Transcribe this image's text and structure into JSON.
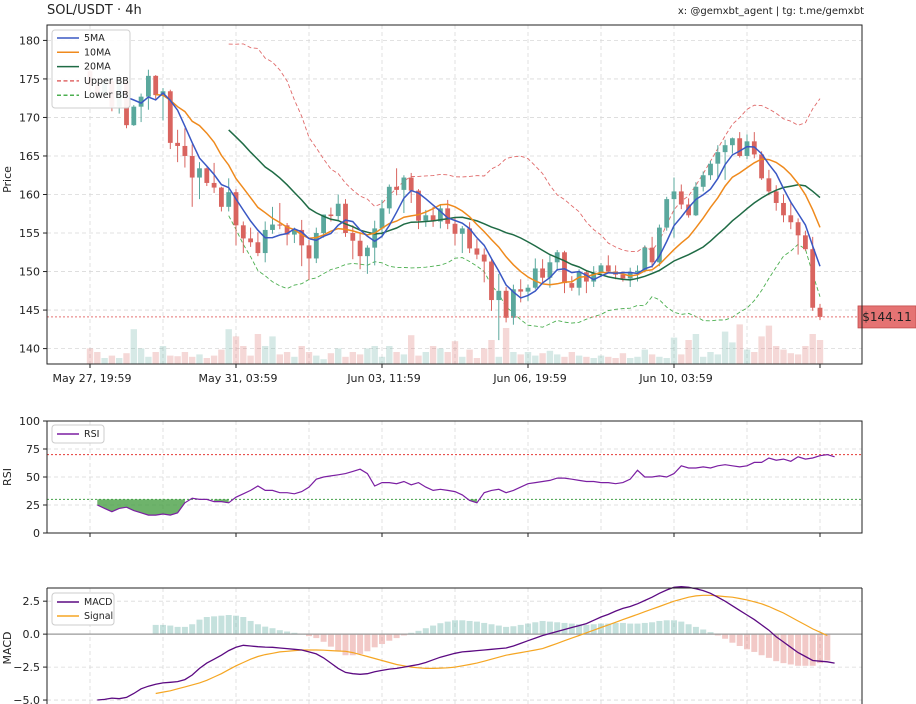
{
  "header": {
    "title": "SOL/USDT · 4h",
    "credit": "x: @gemxbt_agent | tg: t.me/gemxbt"
  },
  "colors": {
    "up": "#5aa89d",
    "down": "#d9645f",
    "ma5": "#3a58c4",
    "ma10": "#ef8a1d",
    "ma20": "#1f6b45",
    "bb_upper": "#e06a6a",
    "bb_lower": "#4caf50",
    "rsi": "#7b1fa2",
    "macd": "#5c0a82",
    "signal": "#f5a623",
    "price_tag": "#e57373"
  },
  "chart_data": [
    {
      "type": "candlestick",
      "id": "price",
      "ylabel": "Price",
      "ylim": [
        138,
        182
      ],
      "yticks": [
        140,
        145,
        150,
        155,
        160,
        165,
        170,
        175,
        180
      ],
      "xtick_labels": [
        "May 27, 19:59",
        "May 31, 03:59",
        "Jun 03, 11:59",
        "Jun 06, 19:59",
        "Jun 10, 03:59"
      ],
      "xtick_index": [
        0,
        20,
        40,
        60,
        80
      ],
      "legend": [
        "5MA",
        "10MA",
        "20MA",
        "Upper BB",
        "Lower BB"
      ],
      "current_price": 144.11,
      "current_price_label": "$144.11",
      "candles": [
        [
          176.0,
          176.6,
          173.4,
          174.2
        ],
        [
          174.2,
          174.6,
          172.9,
          173.2
        ],
        [
          173.2,
          175.2,
          172.6,
          174.7
        ],
        [
          174.7,
          175.0,
          170.8,
          171.4
        ],
        [
          171.4,
          175.6,
          170.5,
          174.8
        ],
        [
          174.6,
          175.1,
          168.6,
          169.0
        ],
        [
          169.0,
          171.6,
          168.9,
          171.4
        ],
        [
          171.4,
          173.1,
          169.4,
          172.7
        ],
        [
          172.7,
          176.2,
          171.0,
          175.4
        ],
        [
          175.4,
          175.5,
          172.3,
          172.9
        ],
        [
          173.0,
          173.8,
          169.6,
          173.4
        ],
        [
          173.4,
          173.6,
          165.9,
          166.7
        ],
        [
          166.7,
          168.4,
          164.2,
          166.3
        ],
        [
          166.3,
          168.6,
          163.5,
          165.0
        ],
        [
          165.0,
          166.5,
          158.4,
          162.2
        ],
        [
          162.2,
          164.2,
          159.4,
          163.4
        ],
        [
          163.4,
          163.5,
          161.1,
          161.5
        ],
        [
          161.5,
          164.1,
          160.2,
          160.9
        ],
        [
          160.9,
          161.0,
          157.8,
          158.4
        ],
        [
          158.4,
          162.1,
          157.8,
          160.3
        ],
        [
          160.3,
          160.7,
          153.4,
          156.0
        ],
        [
          156.0,
          156.5,
          152.4,
          154.3
        ],
        [
          154.3,
          155.7,
          153.2,
          153.8
        ],
        [
          153.8,
          155.1,
          152.0,
          152.4
        ],
        [
          152.4,
          156.5,
          151.2,
          155.4
        ],
        [
          155.4,
          158.4,
          154.9,
          156.1
        ],
        [
          156.1,
          158.9,
          155.5,
          156.0
        ],
        [
          156.0,
          156.3,
          153.4,
          154.8
        ],
        [
          154.8,
          155.7,
          153.7,
          155.4
        ],
        [
          155.4,
          156.7,
          150.7,
          153.4
        ],
        [
          153.4,
          154.1,
          148.9,
          151.7
        ],
        [
          151.7,
          155.7,
          151.1,
          155.0
        ],
        [
          155.0,
          157.4,
          154.4,
          157.4
        ],
        [
          157.4,
          158.3,
          156.5,
          157.2
        ],
        [
          157.2,
          160.0,
          156.7,
          158.8
        ],
        [
          158.8,
          159.4,
          154.5,
          155.0
        ],
        [
          155.0,
          156.0,
          151.6,
          154.0
        ],
        [
          154.0,
          155.1,
          150.3,
          152.0
        ],
        [
          152.0,
          153.4,
          149.7,
          153.1
        ],
        [
          153.1,
          156.6,
          150.8,
          155.6
        ],
        [
          155.6,
          159.3,
          154.4,
          158.2
        ],
        [
          158.2,
          161.3,
          157.5,
          161.0
        ],
        [
          161.0,
          163.4,
          159.9,
          160.6
        ],
        [
          160.6,
          162.5,
          157.6,
          162.2
        ],
        [
          162.2,
          162.8,
          158.9,
          160.5
        ],
        [
          160.5,
          160.7,
          155.5,
          156.6
        ],
        [
          156.6,
          158.0,
          155.8,
          157.3
        ],
        [
          157.3,
          158.4,
          155.8,
          156.5
        ],
        [
          156.5,
          158.6,
          155.6,
          158.2
        ],
        [
          158.2,
          159.3,
          155.5,
          156.2
        ],
        [
          156.2,
          157.0,
          153.4,
          154.9
        ],
        [
          154.9,
          155.9,
          152.4,
          155.6
        ],
        [
          155.6,
          156.4,
          152.4,
          153.0
        ],
        [
          153.0,
          154.2,
          151.6,
          152.2
        ],
        [
          152.2,
          153.0,
          148.6,
          151.3
        ],
        [
          151.3,
          151.7,
          144.9,
          146.3
        ],
        [
          146.3,
          149.7,
          141.1,
          147.5
        ],
        [
          147.5,
          148.0,
          143.4,
          144.0
        ],
        [
          144.0,
          148.3,
          143.1,
          147.7
        ],
        [
          147.7,
          149.0,
          146.0,
          147.4
        ],
        [
          147.4,
          148.3,
          146.2,
          147.9
        ],
        [
          147.9,
          151.7,
          147.7,
          150.4
        ],
        [
          150.4,
          151.6,
          148.6,
          149.2
        ],
        [
          149.2,
          152.1,
          147.9,
          151.2
        ],
        [
          151.2,
          152.8,
          150.1,
          152.5
        ],
        [
          152.5,
          152.7,
          147.2,
          148.5
        ],
        [
          148.5,
          149.4,
          147.5,
          147.9
        ],
        [
          147.9,
          150.3,
          146.9,
          149.9
        ],
        [
          149.9,
          150.2,
          147.2,
          148.7
        ],
        [
          148.7,
          150.7,
          148.0,
          149.8
        ],
        [
          149.8,
          151.1,
          149.3,
          150.8
        ],
        [
          150.8,
          152.1,
          149.8,
          150.0
        ],
        [
          150.0,
          150.8,
          149.0,
          149.6
        ],
        [
          149.6,
          150.0,
          148.7,
          149.1
        ],
        [
          149.1,
          150.5,
          148.0,
          149.9
        ],
        [
          149.9,
          150.8,
          148.7,
          150.1
        ],
        [
          150.1,
          153.4,
          149.9,
          153.1
        ],
        [
          153.1,
          154.5,
          150.5,
          151.2
        ],
        [
          151.2,
          156.1,
          150.7,
          155.7
        ],
        [
          155.7,
          159.7,
          155.3,
          159.4
        ],
        [
          159.4,
          162.2,
          154.4,
          160.4
        ],
        [
          160.4,
          161.3,
          158.1,
          158.7
        ],
        [
          158.7,
          159.5,
          157.0,
          157.3
        ],
        [
          157.3,
          161.6,
          157.2,
          161.0
        ],
        [
          161.0,
          163.0,
          160.4,
          162.5
        ],
        [
          162.5,
          164.4,
          161.9,
          164.0
        ],
        [
          164.0,
          166.4,
          162.1,
          165.5
        ],
        [
          165.5,
          167.1,
          161.9,
          166.4
        ],
        [
          166.4,
          167.4,
          165.3,
          167.3
        ],
        [
          167.3,
          168.1,
          164.8,
          165.0
        ],
        [
          165.0,
          167.8,
          164.6,
          166.9
        ],
        [
          166.9,
          168.1,
          164.7,
          165.2
        ],
        [
          165.2,
          165.6,
          161.9,
          162.1
        ],
        [
          162.1,
          163.2,
          159.9,
          160.4
        ],
        [
          160.4,
          161.2,
          157.9,
          158.9
        ],
        [
          158.9,
          160.0,
          156.4,
          157.3
        ],
        [
          157.3,
          159.1,
          155.5,
          156.4
        ],
        [
          156.4,
          156.9,
          152.2,
          154.7
        ],
        [
          154.7,
          155.3,
          152.7,
          152.9
        ],
        [
          152.9,
          154.5,
          144.9,
          145.3
        ],
        [
          145.3,
          145.8,
          143.7,
          144.11
        ]
      ],
      "volume_rel": [
        0.26,
        0.2,
        0.1,
        0.14,
        0.1,
        0.18,
        0.58,
        0.26,
        0.12,
        0.2,
        0.3,
        0.14,
        0.13,
        0.2,
        0.12,
        0.16,
        0.1,
        0.14,
        0.24,
        0.58,
        0.46,
        0.3,
        0.14,
        0.5,
        0.3,
        0.46,
        0.16,
        0.2,
        0.12,
        0.3,
        0.2,
        0.14,
        0.08,
        0.18,
        0.26,
        0.12,
        0.2,
        0.16,
        0.26,
        0.3,
        0.12,
        0.3,
        0.2,
        0.16,
        0.48,
        0.14,
        0.2,
        0.3,
        0.26,
        0.2,
        0.38,
        0.12,
        0.24,
        0.1,
        0.26,
        0.4,
        0.12,
        0.6,
        0.2,
        0.16,
        0.2,
        0.14,
        0.18,
        0.22,
        0.16,
        0.12,
        0.2,
        0.14,
        0.12,
        0.1,
        0.14,
        0.12,
        0.1,
        0.18,
        0.1,
        0.12,
        0.24,
        0.16,
        0.12,
        0.1,
        0.44,
        0.16,
        0.4,
        0.5,
        0.12,
        0.2,
        0.16,
        0.54,
        0.36,
        0.66,
        0.24,
        0.2,
        0.46,
        0.64,
        0.3,
        0.24,
        0.18,
        0.16,
        0.3,
        0.5,
        0.4,
        0.1
      ]
    },
    {
      "type": "line",
      "id": "rsi",
      "ylabel": "RSI",
      "ylim": [
        0,
        100
      ],
      "yticks": [
        0,
        25,
        50,
        75,
        100
      ],
      "overbought": 70,
      "oversold": 30,
      "legend": [
        "RSI"
      ],
      "rsi_start": 1,
      "values": [
        25,
        22,
        19,
        22,
        23,
        20,
        18,
        16,
        16,
        17,
        16,
        18,
        27,
        31,
        30,
        30,
        28,
        28,
        27,
        32,
        35,
        38,
        42,
        38,
        38,
        36,
        36,
        35,
        37,
        41,
        48,
        50,
        51,
        52,
        53,
        55,
        57,
        53,
        42,
        45,
        45,
        44,
        46,
        43,
        45,
        41,
        38,
        39,
        38,
        37,
        34,
        29,
        27,
        36,
        38,
        39,
        36,
        38,
        41,
        44,
        45,
        46,
        47,
        49,
        49,
        48,
        47,
        46,
        46,
        45,
        45,
        44,
        45,
        48,
        56,
        50,
        50,
        51,
        50,
        53,
        60,
        58,
        58,
        59,
        58,
        60,
        61,
        60,
        59,
        60,
        63,
        63,
        67,
        65,
        66,
        64,
        68,
        66,
        67,
        69,
        70,
        68
      ]
    },
    {
      "type": "line",
      "id": "macd",
      "ylabel": "MACD",
      "ylim": [
        -5.3,
        3.5
      ],
      "yticks": [
        -5.0,
        -2.5,
        0.0,
        2.5
      ],
      "ytick_labels": [
        "−5.0",
        "−2.5",
        "0.0",
        "2.5"
      ],
      "legend": [
        "MACD",
        "Signal"
      ],
      "macd_start": 1,
      "signal_start": 9,
      "macd": [
        -5.0,
        -4.95,
        -4.85,
        -4.9,
        -4.8,
        -4.5,
        -4.15,
        -3.95,
        -3.8,
        -3.7,
        -3.65,
        -3.6,
        -3.45,
        -3.1,
        -2.6,
        -2.2,
        -1.9,
        -1.6,
        -1.25,
        -1.0,
        -0.85,
        -0.9,
        -0.95,
        -0.98,
        -1.0,
        -1.05,
        -1.1,
        -1.15,
        -1.2,
        -1.35,
        -1.5,
        -1.8,
        -2.2,
        -2.6,
        -2.9,
        -3.0,
        -3.05,
        -3.0,
        -2.85,
        -2.75,
        -2.65,
        -2.6,
        -2.5,
        -2.4,
        -2.3,
        -2.15,
        -1.95,
        -1.75,
        -1.6,
        -1.45,
        -1.35,
        -1.3,
        -1.25,
        -1.2,
        -1.15,
        -1.1,
        -1.05,
        -0.9,
        -0.7,
        -0.5,
        -0.3,
        -0.1,
        0.05,
        0.2,
        0.35,
        0.5,
        0.65,
        0.8,
        1.05,
        1.3,
        1.5,
        1.75,
        1.95,
        2.1,
        2.3,
        2.55,
        2.8,
        3.1,
        3.35,
        3.55,
        3.6,
        3.55,
        3.45,
        3.3,
        3.1,
        2.8,
        2.5,
        2.15,
        1.8,
        1.45,
        1.1,
        0.7,
        0.3,
        -0.2,
        -0.6,
        -1.0,
        -1.4,
        -1.7,
        -2.0,
        -2.05,
        -2.1,
        -2.2
      ],
      "signal": [
        -4.5,
        -4.4,
        -4.3,
        -4.15,
        -4.0,
        -3.85,
        -3.7,
        -3.5,
        -3.25,
        -3.0,
        -2.7,
        -2.4,
        -2.15,
        -1.9,
        -1.7,
        -1.55,
        -1.45,
        -1.35,
        -1.3,
        -1.25,
        -1.2,
        -1.2,
        -1.2,
        -1.22,
        -1.25,
        -1.28,
        -1.3,
        -1.4,
        -1.55,
        -1.7,
        -1.85,
        -2.0,
        -2.15,
        -2.3,
        -2.4,
        -2.5,
        -2.55,
        -2.6,
        -2.6,
        -2.58,
        -2.55,
        -2.5,
        -2.4,
        -2.3,
        -2.2,
        -2.05,
        -1.9,
        -1.75,
        -1.6,
        -1.5,
        -1.4,
        -1.3,
        -1.2,
        -1.1,
        -0.9,
        -0.7,
        -0.5,
        -0.3,
        -0.1,
        0.1,
        0.3,
        0.5,
        0.7,
        0.9,
        1.1,
        1.3,
        1.5,
        1.7,
        1.9,
        2.1,
        2.3,
        2.5,
        2.65,
        2.8,
        2.9,
        2.95,
        2.95,
        2.9,
        2.85,
        2.8,
        2.7,
        2.6,
        2.45,
        2.3,
        2.1,
        1.85,
        1.6,
        1.3,
        1.0,
        0.7,
        0.4,
        0.15,
        -0.1
      ]
    }
  ]
}
